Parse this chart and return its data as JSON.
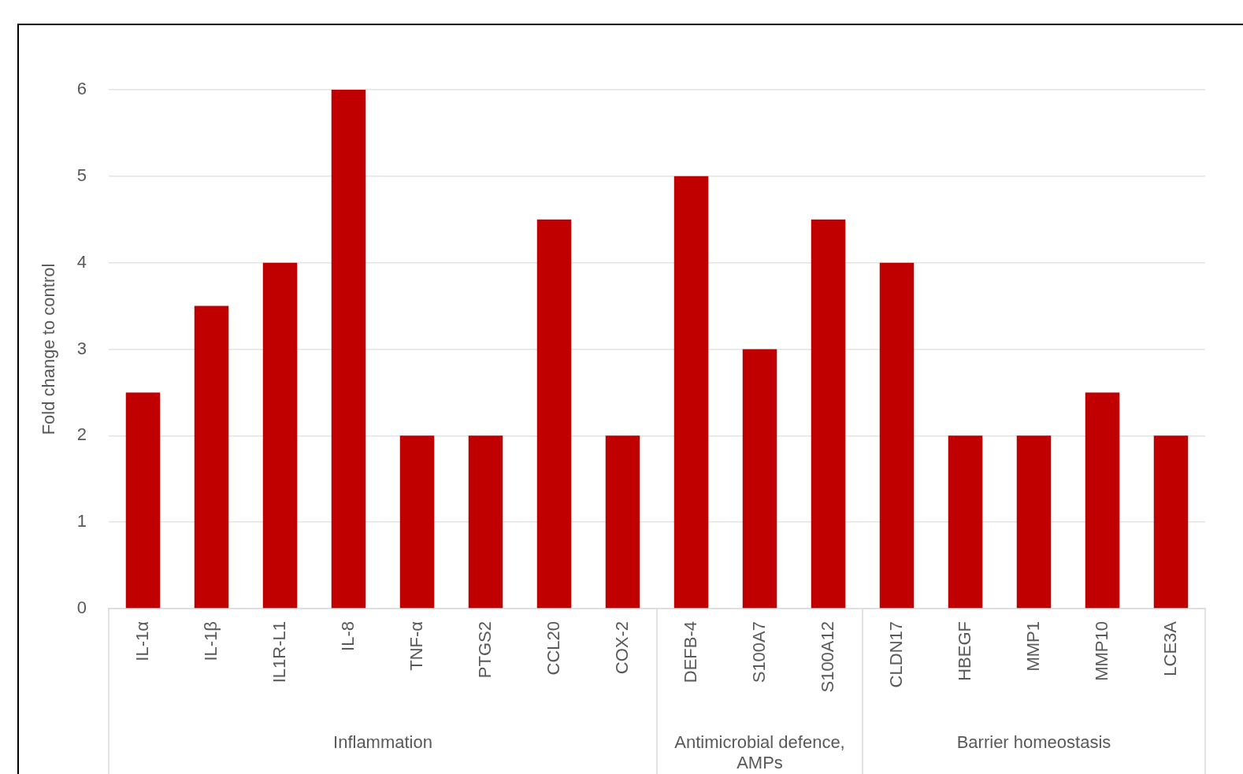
{
  "chart_data": {
    "type": "bar",
    "ylabel": "Fold change to control",
    "categories": [
      "IL-1α",
      "IL-1β",
      "IL1R-L1",
      "IL-8",
      "TNF-α",
      "PTGS2",
      "CCL20",
      "COX-2",
      "DEFB-4",
      "S100A7",
      "S100A12",
      "CLDN17",
      "HBEGF",
      "MMP1",
      "MMP10",
      "LCE3A"
    ],
    "values": [
      2.5,
      3.5,
      4,
      6,
      2,
      2,
      4.5,
      2,
      5,
      3,
      4.5,
      4,
      2,
      2,
      2.5,
      2
    ],
    "color": "#c00000",
    "ylim": [
      0,
      6
    ],
    "yticks": [
      0,
      1,
      2,
      3,
      4,
      5,
      6
    ],
    "grid": "y",
    "legend": false,
    "annotations": [
      "Inflammation",
      "Antimicrobial defence, AMPs",
      "Barrier homeostasis"
    ]
  }
}
